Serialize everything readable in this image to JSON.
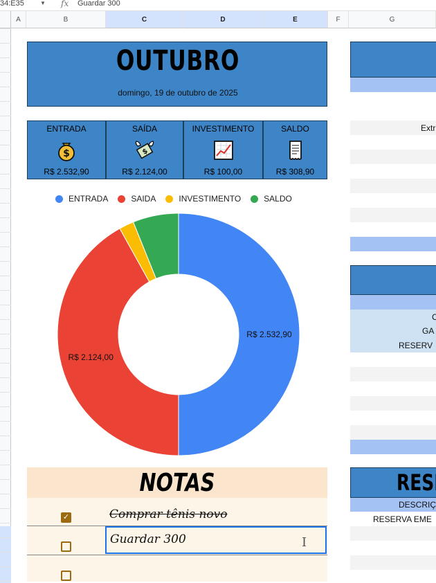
{
  "formula_bar": {
    "cell_ref": "34:E35",
    "formula_value": "Guardar 300"
  },
  "columns": [
    "A",
    "B",
    "C",
    "D",
    "E",
    "F",
    "G"
  ],
  "header": {
    "month": "OUTUBRO",
    "date": "domingo, 19 de outubro de 2025"
  },
  "summary": [
    {
      "label": "ENTRADA",
      "value": "R$ 2.532,90",
      "icon": "money-bag-icon"
    },
    {
      "label": "SAÍDA",
      "value": "R$ 2.124,00",
      "icon": "money-wings-icon"
    },
    {
      "label": "INVESTIMENTO",
      "value": "R$ 100,00",
      "icon": "chart-up-icon"
    },
    {
      "label": "SALDO",
      "value": "R$ 308,90",
      "icon": "receipt-icon"
    }
  ],
  "chart_data": {
    "type": "pie",
    "donut": true,
    "legend_position": "top",
    "categories": [
      "ENTRADA",
      "SAIDA",
      "INVESTIMENTO",
      "SALDO"
    ],
    "values": [
      2532.9,
      2124.0,
      100.0,
      308.9
    ],
    "data_labels": [
      "R$ 2.532,90",
      "R$ 2.124,00",
      "",
      ""
    ],
    "colors": [
      "#4285f4",
      "#ea4335",
      "#fbbc04",
      "#34a853"
    ]
  },
  "notes": {
    "title": "NOTAS",
    "items": [
      {
        "text": "Comprar tênis novo",
        "checked": true
      },
      {
        "text": "Guardar 300",
        "checked": false,
        "editing": true
      },
      {
        "text": "",
        "checked": false
      }
    ]
  },
  "right_panels": {
    "panel1_row_label": "Extr",
    "panel2_rows": [
      "C",
      "GA",
      "RESERV"
    ],
    "panel3_title": "RESE",
    "panel3_header": "DESCRIÇ",
    "panel3_row": "RESERVA EME"
  },
  "colors": {
    "header_blue": "#3d85c6",
    "light_blue": "#a4c2f4",
    "notes_header": "#fbe5cc",
    "notes_body": "#fdf5e8",
    "checkbox": "#9c6a10"
  }
}
